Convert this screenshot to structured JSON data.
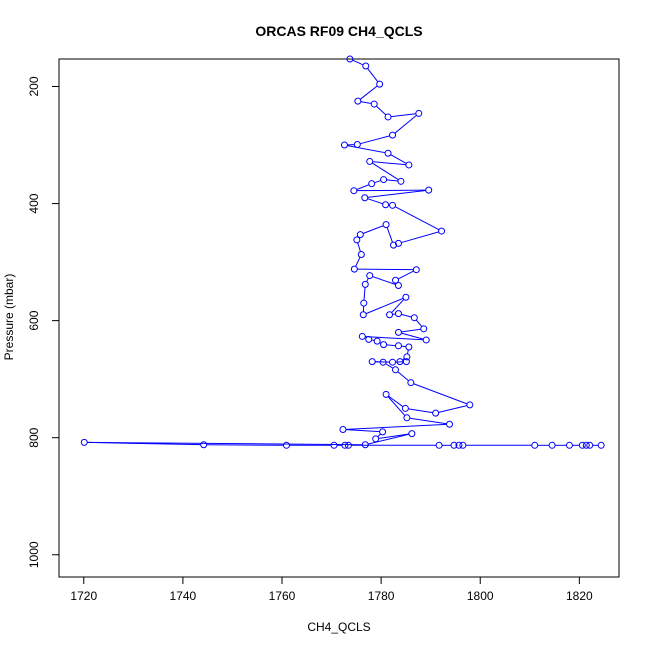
{
  "chart_data": {
    "type": "scatter",
    "title": "ORCAS RF09 CH4_QCLS",
    "xlabel": "CH4_QCLS",
    "ylabel": "Pressure (mbar)",
    "xlim": [
      1715,
      1828
    ],
    "ylim": [
      1038,
      153
    ],
    "y_reversed": true,
    "grid": false,
    "x_ticks": [
      1720,
      1740,
      1760,
      1780,
      1800,
      1820
    ],
    "y_ticks": [
      200,
      400,
      600,
      800,
      1000
    ],
    "series": [
      {
        "color": "#0000ff",
        "marker": "open-circle",
        "connected": true,
        "points": [
          [
            1773.7,
            153
          ],
          [
            1776.9,
            165
          ],
          [
            1779.7,
            196
          ],
          [
            1775.3,
            225
          ],
          [
            1778.6,
            230
          ],
          [
            1781.4,
            252
          ],
          [
            1787.6,
            246
          ],
          [
            1782.3,
            283
          ],
          [
            1775.2,
            299
          ],
          [
            1772.6,
            300
          ],
          [
            1781.4,
            314
          ],
          [
            1785.6,
            334
          ],
          [
            1777.7,
            328
          ],
          [
            1784.0,
            362
          ],
          [
            1780.5,
            359
          ],
          [
            1778.1,
            366
          ],
          [
            1774.5,
            378
          ],
          [
            1789.6,
            377
          ],
          [
            1776.7,
            390
          ],
          [
            1780.9,
            402
          ],
          [
            1782.3,
            403
          ],
          [
            1792.2,
            447
          ],
          [
            1783.5,
            468
          ],
          [
            1782.5,
            471
          ],
          [
            1781.0,
            436
          ],
          [
            1775.8,
            453
          ],
          [
            1775.1,
            462
          ],
          [
            1776.0,
            487
          ],
          [
            1774.6,
            512
          ],
          [
            1787.1,
            513
          ],
          [
            1782.9,
            531
          ],
          [
            1783.5,
            540
          ],
          [
            1777.7,
            523
          ],
          [
            1776.8,
            538
          ],
          [
            1776.5,
            570
          ],
          [
            1776.4,
            590
          ],
          [
            1785.0,
            560
          ],
          [
            1781.7,
            590
          ],
          [
            1783.5,
            588
          ],
          [
            1786.7,
            595
          ],
          [
            1788.6,
            614
          ],
          [
            1783.5,
            620
          ],
          [
            1789.1,
            633
          ],
          [
            1776.2,
            627
          ],
          [
            1777.5,
            632
          ],
          [
            1779.2,
            635
          ],
          [
            1780.5,
            641
          ],
          [
            1783.5,
            643
          ],
          [
            1785.6,
            645
          ],
          [
            1785.2,
            662
          ],
          [
            1783.8,
            670
          ],
          [
            1785.1,
            670
          ],
          [
            1782.3,
            671
          ],
          [
            1778.2,
            670
          ],
          [
            1780.4,
            671
          ],
          [
            1782.9,
            684
          ],
          [
            1786.0,
            706
          ],
          [
            1797.9,
            744
          ],
          [
            1791.0,
            758
          ],
          [
            1784.9,
            750
          ],
          [
            1781.0,
            726
          ],
          [
            1785.2,
            766
          ],
          [
            1793.8,
            777
          ],
          [
            1772.3,
            786
          ],
          [
            1780.3,
            790
          ],
          [
            1778.9,
            802
          ],
          [
            1786.2,
            793
          ],
          [
            1776.8,
            812
          ],
          [
            1720.1,
            808
          ],
          [
            1744.2,
            812
          ],
          [
            1760.9,
            813
          ],
          [
            1770.5,
            813
          ],
          [
            1772.7,
            813
          ],
          [
            1773.4,
            813
          ],
          [
            1791.7,
            813
          ],
          [
            1794.7,
            813
          ],
          [
            1795.7,
            813
          ],
          [
            1796.5,
            813
          ],
          [
            1811.0,
            813
          ],
          [
            1814.5,
            813
          ],
          [
            1818.0,
            813
          ],
          [
            1820.6,
            813
          ],
          [
            1821.4,
            813
          ],
          [
            1822.1,
            813
          ],
          [
            1824.4,
            813
          ]
        ]
      }
    ]
  }
}
